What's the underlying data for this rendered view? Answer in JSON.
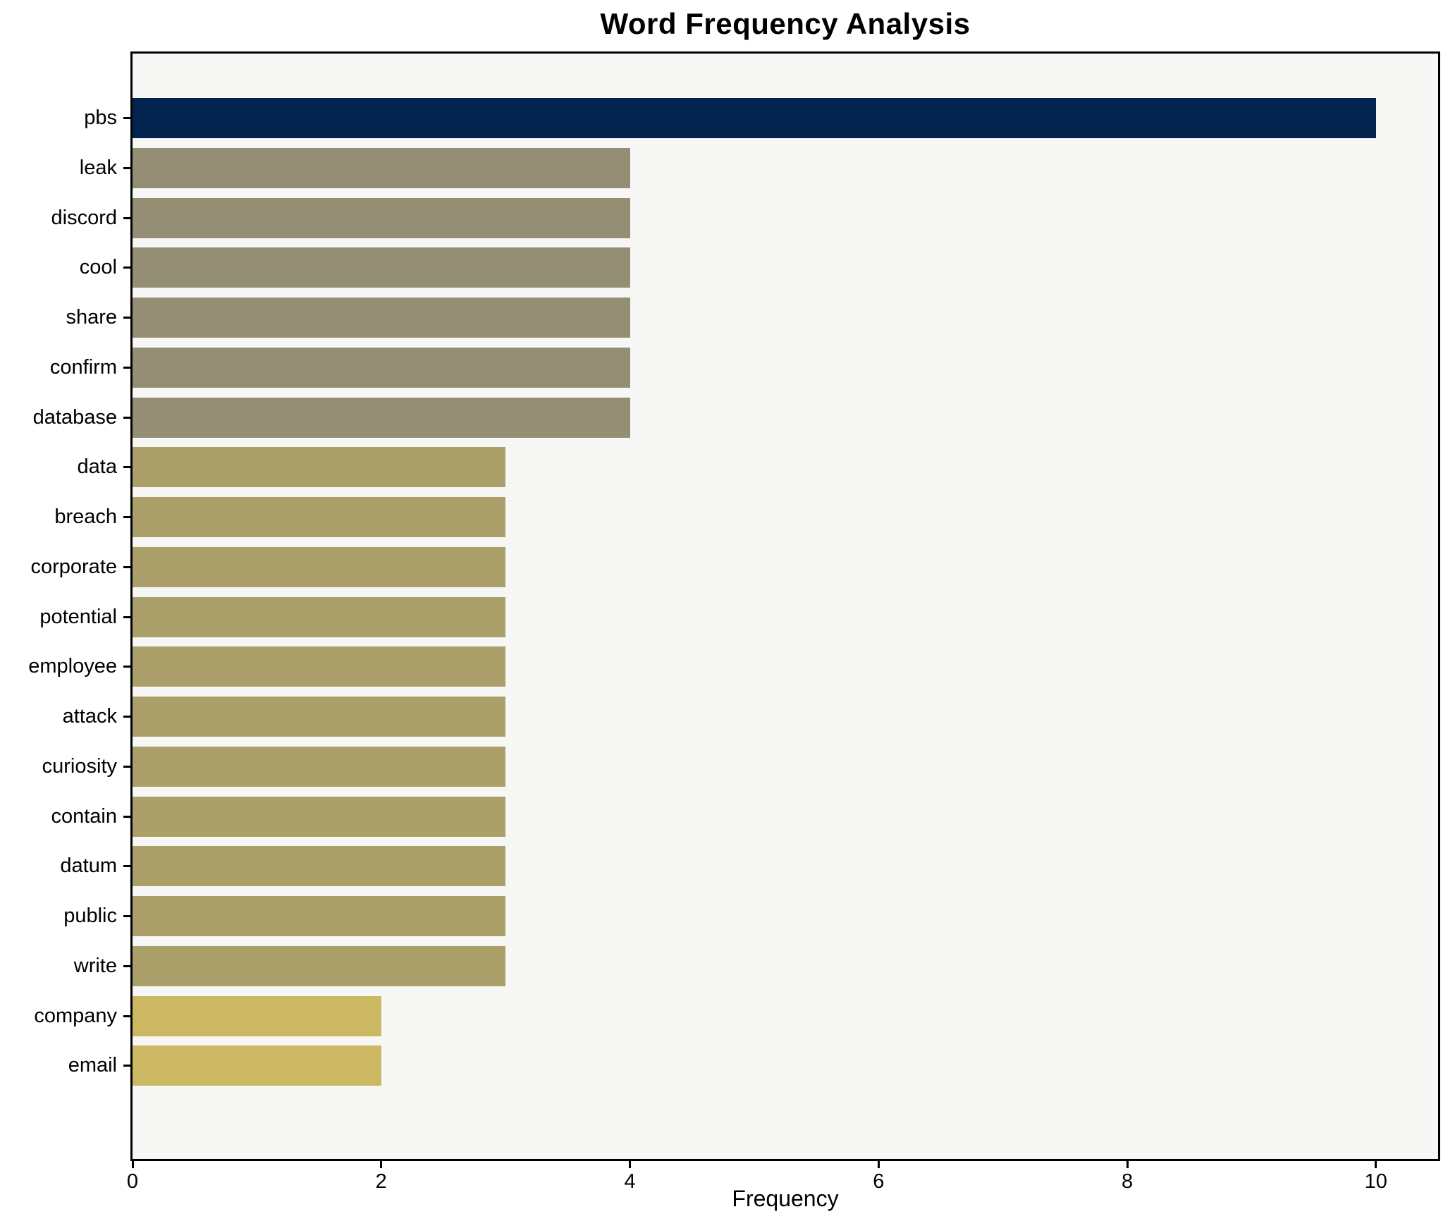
{
  "title": "Word Frequency Analysis",
  "chart_data": {
    "type": "bar",
    "orientation": "horizontal",
    "title": "Word Frequency Analysis",
    "xlabel": "Frequency",
    "ylabel": "",
    "xlim": [
      0,
      10.5
    ],
    "xticks": [
      0,
      2,
      4,
      6,
      8,
      10
    ],
    "grid": false,
    "legend": "none",
    "plot_background": "#f7f7f5",
    "frame_color": "#000000",
    "categories": [
      "pbs",
      "leak",
      "discord",
      "cool",
      "share",
      "confirm",
      "database",
      "data",
      "breach",
      "corporate",
      "potential",
      "employee",
      "attack",
      "curiosity",
      "contain",
      "datum",
      "public",
      "write",
      "company",
      "email"
    ],
    "values": [
      10,
      4,
      4,
      4,
      4,
      4,
      4,
      3,
      3,
      3,
      3,
      3,
      3,
      3,
      3,
      3,
      3,
      3,
      2,
      2
    ],
    "bar_colors": [
      "#02234d",
      "#948e75",
      "#948e75",
      "#948e75",
      "#948e75",
      "#948e75",
      "#948e75",
      "#aba069",
      "#aba069",
      "#aba069",
      "#aba069",
      "#aba069",
      "#aba069",
      "#aba069",
      "#aba069",
      "#aba069",
      "#aba069",
      "#aba069",
      "#ccb763",
      "#ccb763"
    ]
  }
}
